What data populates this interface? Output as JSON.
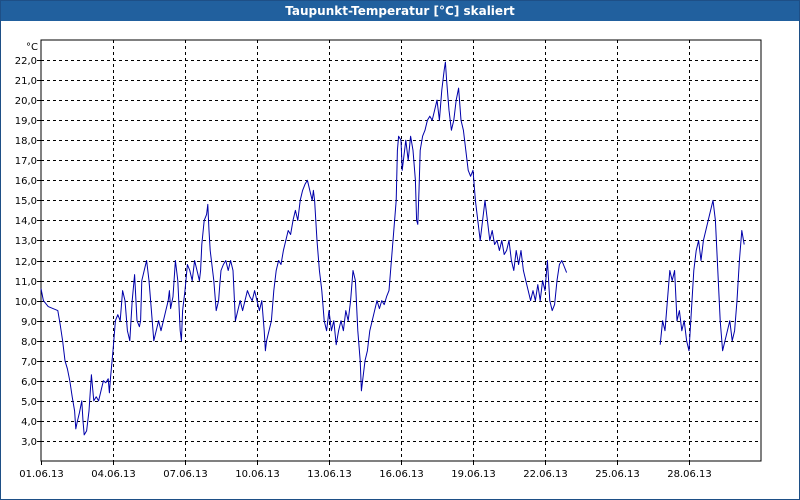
{
  "window": {
    "title": "Taupunkt-Temperatur [°C] skaliert"
  },
  "chart_data": {
    "type": "line",
    "title": "Taupunkt-Temperatur [°C] skaliert",
    "ylabel": "°C",
    "xlabel": "",
    "ylim": [
      2.0,
      23.0
    ],
    "xlim": [
      0,
      30
    ],
    "yticks": [
      3.0,
      4.0,
      5.0,
      6.0,
      7.0,
      8.0,
      9.0,
      10.0,
      11.0,
      12.0,
      13.0,
      14.0,
      15.0,
      16.0,
      17.0,
      18.0,
      19.0,
      20.0,
      21.0,
      22.0
    ],
    "ytick_labels": [
      "3,0",
      "4,0",
      "5,0",
      "6,0",
      "7,0",
      "8,0",
      "9,0",
      "10,0",
      "11,0",
      "12,0",
      "13,0",
      "14,0",
      "15,0",
      "16,0",
      "17,0",
      "18,0",
      "19,0",
      "20,0",
      "21,0",
      "22,0"
    ],
    "xticks": [
      0,
      3,
      6,
      9,
      12,
      15,
      18,
      21,
      24,
      27
    ],
    "xtick_labels": [
      "01.06.13",
      "04.06.13",
      "07.06.13",
      "10.06.13",
      "13.06.13",
      "16.06.13",
      "19.06.13",
      "22.06.13",
      "25.06.13",
      "28.06.13"
    ],
    "grid": true,
    "line_color": "#0000aa",
    "series": [
      {
        "name": "",
        "segments": [
          [
            [
              0.0,
              10.6
            ],
            [
              0.1,
              10.0
            ],
            [
              0.3,
              9.7
            ],
            [
              0.5,
              9.6
            ],
            [
              0.7,
              9.5
            ],
            [
              0.8,
              8.8
            ],
            [
              0.9,
              8.0
            ],
            [
              1.0,
              7.0
            ],
            [
              1.1,
              6.6
            ],
            [
              1.2,
              6.0
            ],
            [
              1.3,
              5.2
            ],
            [
              1.4,
              4.5
            ],
            [
              1.45,
              3.6
            ],
            [
              1.5,
              3.9
            ],
            [
              1.6,
              4.4
            ],
            [
              1.7,
              5.0
            ],
            [
              1.75,
              4.0
            ],
            [
              1.8,
              3.3
            ],
            [
              1.9,
              3.5
            ],
            [
              2.0,
              4.5
            ],
            [
              2.05,
              5.4
            ],
            [
              2.1,
              6.3
            ],
            [
              2.2,
              5.0
            ],
            [
              2.3,
              5.2
            ],
            [
              2.4,
              5.0
            ],
            [
              2.5,
              5.5
            ],
            [
              2.6,
              6.0
            ],
            [
              2.7,
              5.9
            ],
            [
              2.8,
              6.1
            ],
            [
              2.85,
              5.4
            ],
            [
              2.9,
              6.2
            ],
            [
              3.0,
              7.5
            ],
            [
              3.1,
              9.0
            ],
            [
              3.2,
              9.3
            ],
            [
              3.3,
              9.0
            ],
            [
              3.4,
              10.5
            ],
            [
              3.5,
              10.0
            ],
            [
              3.6,
              8.5
            ],
            [
              3.7,
              8.0
            ],
            [
              3.8,
              10.0
            ],
            [
              3.9,
              11.3
            ],
            [
              4.0,
              9.0
            ],
            [
              4.1,
              8.7
            ],
            [
              4.15,
              9.0
            ],
            [
              4.2,
              11.0
            ],
            [
              4.3,
              11.5
            ],
            [
              4.4,
              12.0
            ],
            [
              4.5,
              11.0
            ],
            [
              4.6,
              9.5
            ],
            [
              4.7,
              8.0
            ],
            [
              4.8,
              8.5
            ],
            [
              4.9,
              9.0
            ],
            [
              5.0,
              8.5
            ],
            [
              5.1,
              9.0
            ],
            [
              5.2,
              9.5
            ],
            [
              5.3,
              10.0
            ],
            [
              5.35,
              10.5
            ],
            [
              5.4,
              9.6
            ],
            [
              5.5,
              10.2
            ],
            [
              5.6,
              12.0
            ],
            [
              5.7,
              11.0
            ],
            [
              5.8,
              8.5
            ],
            [
              5.85,
              8.0
            ],
            [
              5.9,
              9.5
            ],
            [
              6.0,
              10.5
            ],
            [
              6.1,
              11.8
            ],
            [
              6.2,
              11.5
            ],
            [
              6.3,
              11.0
            ],
            [
              6.4,
              12.0
            ],
            [
              6.5,
              11.5
            ],
            [
              6.6,
              11.0
            ],
            [
              6.65,
              11.5
            ],
            [
              6.7,
              12.8
            ],
            [
              6.8,
              14.0
            ],
            [
              6.9,
              14.3
            ],
            [
              6.95,
              14.8
            ],
            [
              7.0,
              13.5
            ],
            [
              7.05,
              12.5
            ],
            [
              7.1,
              12.0
            ],
            [
              7.2,
              11.0
            ],
            [
              7.3,
              9.5
            ],
            [
              7.4,
              10.0
            ],
            [
              7.45,
              10.8
            ],
            [
              7.5,
              11.5
            ],
            [
              7.6,
              11.8
            ],
            [
              7.7,
              12.0
            ],
            [
              7.8,
              11.5
            ],
            [
              7.9,
              12.0
            ],
            [
              8.0,
              11.5
            ],
            [
              8.1,
              9.0
            ],
            [
              8.2,
              9.5
            ],
            [
              8.3,
              10.0
            ],
            [
              8.4,
              9.5
            ],
            [
              8.5,
              10.0
            ],
            [
              8.6,
              10.5
            ],
            [
              8.7,
              10.2
            ],
            [
              8.8,
              10.0
            ],
            [
              8.9,
              10.5
            ],
            [
              9.0,
              10.0
            ],
            [
              9.1,
              9.5
            ],
            [
              9.2,
              10.0
            ],
            [
              9.3,
              8.5
            ],
            [
              9.35,
              7.5
            ],
            [
              9.4,
              8.0
            ],
            [
              9.5,
              8.5
            ],
            [
              9.6,
              9.0
            ],
            [
              9.7,
              10.5
            ],
            [
              9.8,
              11.5
            ],
            [
              9.9,
              12.0
            ],
            [
              10.0,
              11.8
            ],
            [
              10.1,
              12.5
            ],
            [
              10.2,
              13.0
            ],
            [
              10.3,
              13.5
            ],
            [
              10.4,
              13.3
            ],
            [
              10.5,
              14.0
            ],
            [
              10.6,
              14.5
            ],
            [
              10.7,
              14.0
            ],
            [
              10.8,
              15.0
            ],
            [
              10.9,
              15.5
            ],
            [
              11.0,
              15.8
            ],
            [
              11.1,
              16.0
            ],
            [
              11.2,
              15.5
            ],
            [
              11.3,
              15.0
            ],
            [
              11.35,
              15.5
            ],
            [
              11.4,
              15.0
            ],
            [
              11.5,
              13.0
            ],
            [
              11.6,
              11.5
            ],
            [
              11.7,
              10.5
            ],
            [
              11.8,
              9.0
            ],
            [
              11.9,
              8.5
            ],
            [
              12.0,
              9.5
            ],
            [
              12.1,
              8.5
            ],
            [
              12.2,
              9.0
            ],
            [
              12.3,
              7.8
            ],
            [
              12.4,
              8.5
            ],
            [
              12.5,
              9.0
            ],
            [
              12.6,
              8.5
            ],
            [
              12.7,
              9.5
            ],
            [
              12.8,
              9.0
            ],
            [
              12.9,
              10.0
            ],
            [
              13.0,
              11.5
            ],
            [
              13.1,
              11.0
            ],
            [
              13.2,
              8.5
            ],
            [
              13.3,
              7.0
            ],
            [
              13.35,
              5.5
            ],
            [
              13.4,
              6.0
            ],
            [
              13.5,
              7.0
            ],
            [
              13.6,
              7.5
            ],
            [
              13.7,
              8.5
            ],
            [
              13.8,
              9.0
            ],
            [
              13.9,
              9.5
            ],
            [
              14.0,
              10.0
            ],
            [
              14.1,
              9.6
            ],
            [
              14.2,
              10.0
            ],
            [
              14.3,
              9.8
            ],
            [
              14.4,
              10.2
            ],
            [
              14.5,
              10.5
            ],
            [
              14.6,
              12.0
            ],
            [
              14.7,
              13.5
            ],
            [
              14.8,
              15.0
            ],
            [
              14.85,
              17.5
            ],
            [
              14.9,
              18.2
            ],
            [
              15.0,
              18.0
            ],
            [
              15.05,
              16.5
            ],
            [
              15.1,
              17.0
            ],
            [
              15.2,
              18.0
            ],
            [
              15.3,
              17.0
            ],
            [
              15.4,
              18.2
            ],
            [
              15.5,
              17.5
            ],
            [
              15.6,
              16.0
            ],
            [
              15.65,
              14.0
            ],
            [
              15.7,
              13.8
            ],
            [
              15.75,
              15.5
            ],
            [
              15.8,
              17.5
            ],
            [
              15.9,
              18.2
            ],
            [
              16.0,
              18.5
            ],
            [
              16.1,
              19.0
            ],
            [
              16.2,
              19.2
            ],
            [
              16.3,
              19.0
            ],
            [
              16.4,
              19.5
            ],
            [
              16.5,
              20.0
            ],
            [
              16.6,
              19.0
            ],
            [
              16.7,
              20.5
            ],
            [
              16.8,
              21.5
            ],
            [
              16.85,
              21.9
            ],
            [
              16.9,
              21.0
            ],
            [
              17.0,
              19.5
            ],
            [
              17.1,
              18.5
            ],
            [
              17.2,
              19.0
            ],
            [
              17.3,
              20.0
            ],
            [
              17.4,
              20.6
            ],
            [
              17.5,
              19.0
            ],
            [
              17.6,
              18.5
            ],
            [
              17.7,
              17.5
            ],
            [
              17.8,
              16.5
            ],
            [
              17.9,
              16.2
            ],
            [
              18.0,
              16.5
            ],
            [
              18.1,
              15.0
            ],
            [
              18.2,
              14.0
            ],
            [
              18.3,
              13.0
            ],
            [
              18.4,
              14.0
            ],
            [
              18.5,
              15.0
            ],
            [
              18.6,
              14.0
            ],
            [
              18.7,
              13.0
            ],
            [
              18.8,
              13.5
            ],
            [
              18.9,
              12.8
            ],
            [
              19.0,
              13.0
            ],
            [
              19.1,
              12.5
            ],
            [
              19.2,
              13.0
            ],
            [
              19.3,
              12.3
            ],
            [
              19.4,
              12.5
            ],
            [
              19.5,
              13.0
            ],
            [
              19.6,
              12.0
            ],
            [
              19.7,
              11.5
            ],
            [
              19.8,
              12.5
            ],
            [
              19.9,
              11.8
            ],
            [
              20.0,
              12.5
            ],
            [
              20.1,
              11.5
            ],
            [
              20.2,
              11.0
            ],
            [
              20.3,
              10.5
            ],
            [
              20.4,
              10.0
            ],
            [
              20.5,
              10.5
            ],
            [
              20.6,
              10.0
            ],
            [
              20.7,
              10.8
            ],
            [
              20.8,
              10.0
            ],
            [
              20.9,
              11.0
            ],
            [
              21.0,
              10.5
            ],
            [
              21.1,
              12.0
            ],
            [
              21.2,
              10.0
            ],
            [
              21.3,
              9.5
            ],
            [
              21.4,
              9.8
            ],
            [
              21.5,
              11.0
            ],
            [
              21.6,
              11.8
            ],
            [
              21.7,
              12.0
            ],
            [
              21.8,
              11.7
            ],
            [
              21.9,
              11.4
            ]
          ],
          [
            [
              25.8,
              7.8
            ],
            [
              25.9,
              9.0
            ],
            [
              26.0,
              8.5
            ],
            [
              26.1,
              10.0
            ],
            [
              26.2,
              11.5
            ],
            [
              26.3,
              11.0
            ],
            [
              26.4,
              11.5
            ],
            [
              26.5,
              9.0
            ],
            [
              26.6,
              9.5
            ],
            [
              26.7,
              8.5
            ],
            [
              26.8,
              9.0
            ],
            [
              26.9,
              8.0
            ],
            [
              27.0,
              7.5
            ],
            [
              27.1,
              9.5
            ],
            [
              27.2,
              11.5
            ],
            [
              27.3,
              12.5
            ],
            [
              27.4,
              13.0
            ],
            [
              27.5,
              12.0
            ],
            [
              27.6,
              13.0
            ],
            [
              27.7,
              13.5
            ],
            [
              27.8,
              14.0
            ],
            [
              27.9,
              14.5
            ],
            [
              28.0,
              15.0
            ],
            [
              28.1,
              14.0
            ],
            [
              28.2,
              11.5
            ],
            [
              28.3,
              9.0
            ],
            [
              28.4,
              7.5
            ],
            [
              28.5,
              8.0
            ],
            [
              28.6,
              8.5
            ],
            [
              28.7,
              9.0
            ],
            [
              28.8,
              8.0
            ],
            [
              28.9,
              8.5
            ],
            [
              29.0,
              10.0
            ],
            [
              29.1,
              12.0
            ],
            [
              29.2,
              13.5
            ],
            [
              29.3,
              12.8
            ]
          ]
        ]
      }
    ]
  }
}
